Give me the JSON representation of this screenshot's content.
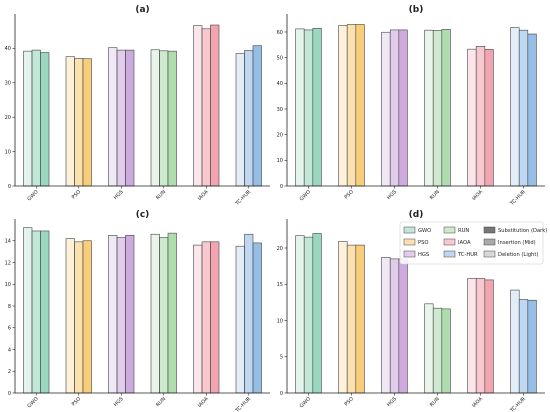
{
  "chart_data": [
    {
      "type": "bar",
      "title": "(a)",
      "xlabel": "",
      "ylabel": "",
      "categories": [
        "GWO",
        "PSO",
        "HGS",
        "RUN",
        "IAOA",
        "TC-HUR"
      ],
      "ylim": [
        0,
        50
      ],
      "yticks": [
        0,
        10,
        20,
        30,
        40
      ],
      "grid": false,
      "series": [
        {
          "variant": "light",
          "values": [
            39.2,
            37.6,
            40.2,
            39.6,
            46.6,
            38.5
          ]
        },
        {
          "variant": "mid",
          "values": [
            39.5,
            37.1,
            39.5,
            39.3,
            45.7,
            39.4
          ]
        },
        {
          "variant": "dark",
          "values": [
            38.8,
            37.0,
            39.5,
            39.2,
            46.8,
            40.8
          ]
        }
      ]
    },
    {
      "type": "bar",
      "title": "(b)",
      "xlabel": "",
      "ylabel": "",
      "categories": [
        "GWO",
        "PSO",
        "HGS",
        "RUN",
        "IAOA",
        "TC-HUR"
      ],
      "ylim": [
        0,
        67
      ],
      "yticks": [
        0,
        10,
        20,
        30,
        40,
        50,
        60
      ],
      "grid": false,
      "series": [
        {
          "variant": "light",
          "values": [
            61.2,
            62.5,
            59.9,
            60.7,
            53.3,
            61.7
          ]
        },
        {
          "variant": "mid",
          "values": [
            60.8,
            62.9,
            60.8,
            60.6,
            54.4,
            60.7
          ]
        },
        {
          "variant": "dark",
          "values": [
            61.4,
            62.9,
            60.8,
            61.0,
            53.2,
            59.2
          ]
        }
      ]
    },
    {
      "type": "bar",
      "title": "(c)",
      "xlabel": "",
      "ylabel": "",
      "categories": [
        "GWO",
        "PSO",
        "HGS",
        "RUN",
        "IAOA",
        "TC-HUR"
      ],
      "ylim": [
        0,
        16
      ],
      "yticks": [
        0,
        2,
        4,
        6,
        8,
        10,
        12,
        14
      ],
      "grid": false,
      "series": [
        {
          "variant": "light",
          "values": [
            15.2,
            14.2,
            14.5,
            14.6,
            13.6,
            13.5
          ]
        },
        {
          "variant": "mid",
          "values": [
            14.9,
            13.9,
            14.3,
            14.3,
            13.9,
            14.6
          ]
        },
        {
          "variant": "dark",
          "values": [
            14.9,
            14.0,
            14.5,
            14.7,
            13.9,
            13.8
          ]
        }
      ]
    },
    {
      "type": "bar",
      "title": "(d)",
      "xlabel": "",
      "ylabel": "",
      "categories": [
        "GWO",
        "PSO",
        "HGS",
        "RUN",
        "IAOA",
        "TC-HUR"
      ],
      "ylim": [
        0,
        24
      ],
      "yticks": [
        0,
        5,
        10,
        15,
        20
      ],
      "grid": false,
      "legend_position": "top-right",
      "series": [
        {
          "variant": "light",
          "values": [
            21.7,
            20.9,
            18.7,
            12.3,
            15.8,
            14.2
          ]
        },
        {
          "variant": "mid",
          "values": [
            21.5,
            20.4,
            18.5,
            11.7,
            15.8,
            12.9
          ]
        },
        {
          "variant": "dark",
          "values": [
            22.0,
            20.4,
            18.5,
            11.6,
            15.6,
            12.8
          ]
        }
      ]
    }
  ],
  "colors": {
    "GWO": "#8fd3b8",
    "PSO": "#f8c96b",
    "HGS": "#c8a2dc",
    "RUN": "#a6d9a5",
    "IAOA": "#f29aa8",
    "TC-HUR": "#8ab6e3",
    "shade_dark": "#777777",
    "shade_mid": "#aaaaaa",
    "shade_light": "#d8d8d8",
    "edge": "#444444"
  },
  "variant_opacity": {
    "light": 0.25,
    "mid": 0.55,
    "dark": 0.9
  },
  "legend": {
    "items": [
      {
        "label": "GWO",
        "swatch": "GWO"
      },
      {
        "label": "RUN",
        "swatch": "RUN"
      },
      {
        "label": "Substitution (Dark)",
        "swatch": "shade_dark"
      },
      {
        "label": "PSO",
        "swatch": "PSO"
      },
      {
        "label": "IAOA",
        "swatch": "IAOA"
      },
      {
        "label": "Insertion (Mid)",
        "swatch": "shade_mid"
      },
      {
        "label": "HGS",
        "swatch": "HGS"
      },
      {
        "label": "TC-HUR",
        "swatch": "TC-HUR"
      },
      {
        "label": "Deletion (Light)",
        "swatch": "shade_light"
      }
    ]
  }
}
